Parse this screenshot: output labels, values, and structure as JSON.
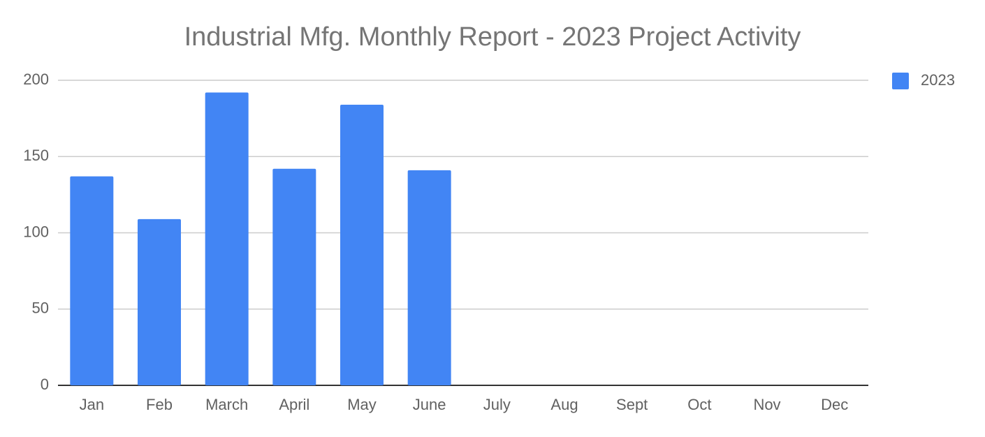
{
  "chart_data": {
    "type": "bar",
    "title": "Industrial Mfg. Monthly Report - 2023 Project Activity",
    "categories": [
      "Jan",
      "Feb",
      "March",
      "April",
      "May",
      "June",
      "July",
      "Aug",
      "Sept",
      "Oct",
      "Nov",
      "Dec"
    ],
    "series": [
      {
        "name": "2023",
        "color": "#4285f4",
        "values": [
          137,
          109,
          192,
          142,
          184,
          141,
          null,
          null,
          null,
          null,
          null,
          null
        ]
      }
    ],
    "ylim": [
      0,
      200
    ],
    "yticks": [
      0,
      50,
      100,
      150,
      200
    ],
    "grid": true,
    "legend": "right"
  }
}
